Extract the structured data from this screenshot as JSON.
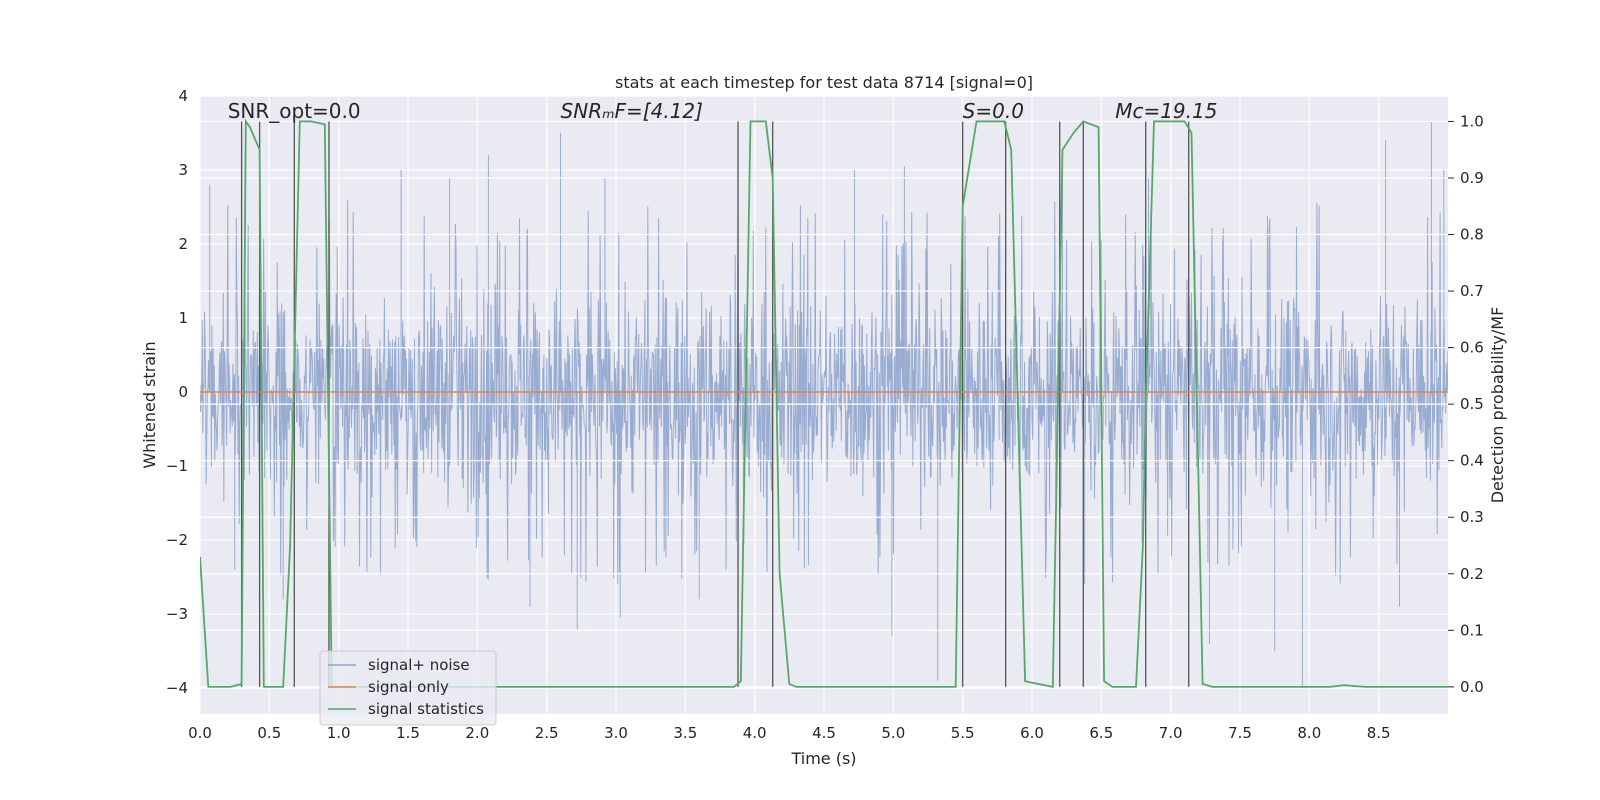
{
  "chart_data": {
    "type": "line",
    "title": "stats at each timestep for test data 8714 [signal=0]",
    "xlabel": "Time (s)",
    "ylabel_left": "Whitened strain",
    "ylabel_right": "Detection probability/MF",
    "xlim": [
      0.0,
      9.0
    ],
    "ylim_left": [
      -4.35,
      4.0
    ],
    "ylim_right": [
      -0.048,
      1.045
    ],
    "x_ticks": [
      0.0,
      0.5,
      1.0,
      1.5,
      2.0,
      2.5,
      3.0,
      3.5,
      4.0,
      4.5,
      5.0,
      5.5,
      6.0,
      6.5,
      7.0,
      7.5,
      8.0,
      8.5
    ],
    "x_tick_labels": [
      "0.0",
      "0.5",
      "1.0",
      "1.5",
      "2.0",
      "2.5",
      "3.0",
      "3.5",
      "4.0",
      "4.5",
      "5.0",
      "5.5",
      "6.0",
      "6.5",
      "7.0",
      "7.5",
      "8.0",
      "8.5"
    ],
    "y_left_ticks": [
      -4,
      -3,
      -2,
      -1,
      0,
      1,
      2,
      3,
      4
    ],
    "y_left_tick_labels": [
      "−4",
      "−3",
      "−2",
      "−1",
      "0",
      "1",
      "2",
      "3",
      "4"
    ],
    "y_right_ticks": [
      0.0,
      0.1,
      0.2,
      0.3,
      0.4,
      0.5,
      0.6,
      0.7,
      0.8,
      0.9,
      1.0
    ],
    "y_right_tick_labels": [
      "0.0",
      "0.1",
      "0.2",
      "0.3",
      "0.4",
      "0.5",
      "0.6",
      "0.7",
      "0.8",
      "0.9",
      "1.0"
    ],
    "annotations": [
      {
        "id": "snr-opt",
        "text": "SNR_opt=0.0",
        "italic": false,
        "x": 0.2,
        "y": 3.7
      },
      {
        "id": "snr-mf",
        "text": "SNRₘF=[4.12]",
        "italic": true,
        "x": 2.6,
        "y": 3.7
      },
      {
        "id": "s-stat",
        "text": "S=0.0",
        "italic": true,
        "x": 5.5,
        "y": 3.7
      },
      {
        "id": "mc",
        "text": "Mᴄ=19.15",
        "italic": true,
        "x": 6.6,
        "y": 3.7
      }
    ],
    "legend": {
      "position": "lower-left",
      "entries": [
        {
          "label": "signal+ noise",
          "color": "#8fa4cc"
        },
        {
          "label": "signal only",
          "color": "#dd8452"
        },
        {
          "label": "signal statistics",
          "color": "#55a868"
        }
      ]
    },
    "colors": {
      "noise": "#8fa4cc",
      "signal": "#dd8452",
      "stat": "#55a868",
      "vline": "#555555",
      "axes_bg": "#eaeaf2",
      "grid": "#ffffff"
    },
    "series": [
      {
        "name": "signal+ noise",
        "axis": "left",
        "kind": "noise-band",
        "typical_range": [
          -1.8,
          1.7
        ],
        "peaks": [
          {
            "x": 0.07,
            "y": 2.8
          },
          {
            "x": 0.3,
            "y": 3.4
          },
          {
            "x": 1.45,
            "y": 3.0
          },
          {
            "x": 1.8,
            "y": 2.9
          },
          {
            "x": 2.08,
            "y": 3.2
          },
          {
            "x": 2.6,
            "y": 3.5
          },
          {
            "x": 2.92,
            "y": 2.9
          },
          {
            "x": 4.72,
            "y": 3.0
          },
          {
            "x": 5.08,
            "y": 3.05
          },
          {
            "x": 6.22,
            "y": 3.1
          },
          {
            "x": 6.84,
            "y": 2.9
          },
          {
            "x": 8.55,
            "y": 3.4
          },
          {
            "x": 8.88,
            "y": 3.65
          },
          {
            "x": 8.97,
            "y": 3.0
          }
        ],
        "troughs": [
          {
            "x": 0.25,
            "y": -2.4
          },
          {
            "x": 0.6,
            "y": -2.8
          },
          {
            "x": 2.38,
            "y": -2.9
          },
          {
            "x": 2.72,
            "y": -3.2
          },
          {
            "x": 3.03,
            "y": -3.05
          },
          {
            "x": 3.6,
            "y": -2.8
          },
          {
            "x": 4.99,
            "y": -3.3
          },
          {
            "x": 5.32,
            "y": -3.9
          },
          {
            "x": 6.38,
            "y": -2.6
          },
          {
            "x": 7.28,
            "y": -3.4
          },
          {
            "x": 7.75,
            "y": -3.5
          },
          {
            "x": 7.95,
            "y": -4.0
          },
          {
            "x": 8.65,
            "y": -2.9
          }
        ]
      },
      {
        "name": "signal only",
        "axis": "left",
        "x": [
          0.0,
          9.0
        ],
        "y": [
          0.0,
          0.0
        ]
      },
      {
        "name": "signal statistics",
        "axis": "right",
        "x": [
          0.0,
          0.06,
          0.22,
          0.3,
          0.33,
          0.36,
          0.43,
          0.46,
          0.5,
          0.6,
          0.65,
          0.72,
          0.8,
          0.9,
          0.95,
          1.0,
          3.85,
          3.9,
          3.97,
          4.08,
          4.13,
          4.18,
          4.25,
          4.3,
          5.45,
          5.5,
          5.6,
          5.8,
          5.85,
          5.95,
          6.15,
          6.22,
          6.3,
          6.37,
          6.48,
          6.52,
          6.58,
          6.75,
          6.8,
          6.82,
          6.88,
          7.1,
          7.15,
          7.23,
          7.3,
          8.15,
          8.25,
          8.4,
          9.0
        ],
        "y": [
          0.23,
          0.0,
          0.0,
          0.005,
          1.0,
          0.99,
          0.95,
          0.0,
          0.0,
          0.0,
          0.25,
          1.0,
          1.0,
          0.995,
          0.0,
          0.0,
          0.0,
          0.01,
          1.0,
          1.0,
          0.9,
          0.2,
          0.005,
          0.0,
          0.0,
          0.85,
          1.0,
          1.0,
          0.95,
          0.01,
          0.0,
          0.95,
          0.98,
          1.0,
          0.99,
          0.01,
          0.0,
          0.0,
          0.25,
          0.5,
          1.0,
          1.0,
          0.98,
          0.005,
          0.0,
          0.0,
          0.003,
          0.0,
          0.0
        ]
      }
    ],
    "vertical_lines": [
      0.3,
      0.43,
      0.68,
      0.93,
      3.88,
      4.13,
      5.5,
      5.81,
      6.2,
      6.37,
      6.82,
      7.13
    ]
  }
}
